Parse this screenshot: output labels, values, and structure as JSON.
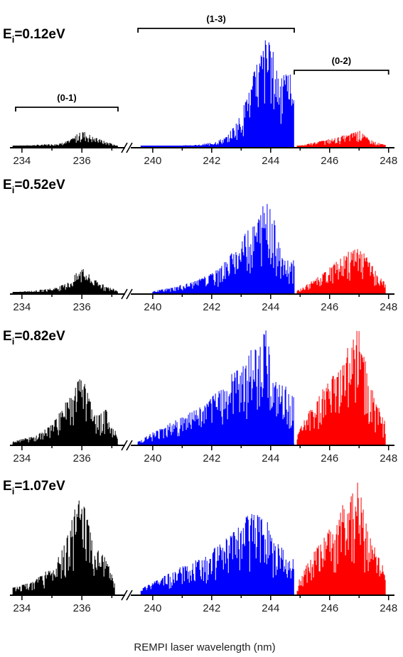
{
  "figure": {
    "xlabel": "REMPI laser wavelength (nm)"
  },
  "chart_data": {
    "type": "line",
    "xlabel": "REMPI laser wavelength (nm)",
    "x_axis": {
      "segments": [
        [
          233.6,
          237.3
        ],
        [
          239.4,
          248.2
        ]
      ],
      "break_between": [
        237.3,
        239.4
      ],
      "tick_labels": [
        "234",
        "236",
        "240",
        "242",
        "244",
        "246",
        "248"
      ],
      "ticks": [
        234,
        236,
        240,
        242,
        244,
        246,
        248
      ]
    },
    "band_groups": [
      {
        "label": "(0-1)",
        "x_range": [
          233.6,
          237.3
        ],
        "color": "#000000"
      },
      {
        "label": "(1-3)",
        "x_range": [
          239.5,
          244.8
        ],
        "color": "#0000ff"
      },
      {
        "label": "(0-2)",
        "x_range": [
          244.8,
          248.0
        ],
        "color": "#ff0000"
      }
    ],
    "colors": {
      "(0-1)": "#000000",
      "(1-3)": "#0000ff",
      "(0-2)": "#ff0000"
    },
    "panels": [
      {
        "energy_label": {
          "main": "E",
          "sub": "i",
          "value": "=0.12eV"
        },
        "series": [
          {
            "band": "(0-1)",
            "x_start": 233.7,
            "x_end": 237.2,
            "peaks": [
              [
                233.7,
                0.01
              ],
              [
                234.5,
                0.02
              ],
              [
                235.2,
                0.03
              ],
              [
                235.6,
                0.06
              ],
              [
                235.9,
                0.13
              ],
              [
                236.1,
                0.14
              ],
              [
                236.4,
                0.09
              ],
              [
                236.8,
                0.05
              ],
              [
                237.2,
                0.01
              ]
            ]
          },
          {
            "band": "(1-3)",
            "x_start": 239.6,
            "x_end": 244.8,
            "peaks": [
              [
                239.6,
                0.01
              ],
              [
                240.5,
                0.01
              ],
              [
                241.5,
                0.02
              ],
              [
                242.0,
                0.04
              ],
              [
                242.5,
                0.09
              ],
              [
                243.0,
                0.3
              ],
              [
                243.3,
                0.55
              ],
              [
                243.6,
                0.82
              ],
              [
                243.85,
                1.0
              ],
              [
                244.1,
                0.85
              ],
              [
                244.4,
                0.62
              ],
              [
                244.7,
                0.72
              ],
              [
                244.8,
                0.4
              ]
            ]
          },
          {
            "band": "(0-2)",
            "x_start": 244.9,
            "x_end": 247.9,
            "peaks": [
              [
                244.9,
                0.01
              ],
              [
                245.3,
                0.03
              ],
              [
                245.8,
                0.06
              ],
              [
                246.3,
                0.09
              ],
              [
                246.7,
                0.12
              ],
              [
                247.0,
                0.15
              ],
              [
                247.3,
                0.08
              ],
              [
                247.6,
                0.04
              ],
              [
                247.9,
                0.02
              ]
            ]
          }
        ]
      },
      {
        "energy_label": {
          "main": "E",
          "sub": "i",
          "value": "=0.52eV"
        },
        "series": [
          {
            "band": "(0-1)",
            "x_start": 233.7,
            "x_end": 237.2,
            "peaks": [
              [
                233.7,
                0.01
              ],
              [
                234.5,
                0.03
              ],
              [
                235.2,
                0.06
              ],
              [
                235.6,
                0.12
              ],
              [
                235.9,
                0.23
              ],
              [
                236.1,
                0.24
              ],
              [
                236.4,
                0.14
              ],
              [
                236.8,
                0.07
              ],
              [
                237.2,
                0.03
              ]
            ]
          },
          {
            "band": "(1-3)",
            "x_start": 240.0,
            "x_end": 244.8,
            "peaks": [
              [
                240.0,
                0.02
              ],
              [
                240.8,
                0.07
              ],
              [
                241.5,
                0.13
              ],
              [
                242.0,
                0.2
              ],
              [
                242.5,
                0.32
              ],
              [
                242.9,
                0.48
              ],
              [
                243.3,
                0.66
              ],
              [
                243.6,
                0.8
              ],
              [
                243.85,
                0.95
              ],
              [
                244.1,
                0.74
              ],
              [
                244.4,
                0.36
              ],
              [
                244.8,
                0.32
              ]
            ]
          },
          {
            "band": "(0-2)",
            "x_start": 244.9,
            "x_end": 247.9,
            "peaks": [
              [
                244.9,
                0.03
              ],
              [
                245.3,
                0.1
              ],
              [
                245.8,
                0.2
              ],
              [
                246.2,
                0.3
              ],
              [
                246.6,
                0.42
              ],
              [
                246.9,
                0.45
              ],
              [
                247.2,
                0.38
              ],
              [
                247.6,
                0.2
              ],
              [
                247.9,
                0.1
              ]
            ]
          }
        ]
      },
      {
        "energy_label": {
          "main": "E",
          "sub": "i",
          "value": "=0.82eV"
        },
        "series": [
          {
            "band": "(0-1)",
            "x_start": 233.7,
            "x_end": 237.2,
            "peaks": [
              [
                233.7,
                0.03
              ],
              [
                234.5,
                0.08
              ],
              [
                235.0,
                0.18
              ],
              [
                235.5,
                0.38
              ],
              [
                235.9,
                0.58
              ],
              [
                236.1,
                0.55
              ],
              [
                236.4,
                0.26
              ],
              [
                236.8,
                0.3
              ],
              [
                237.2,
                0.07
              ]
            ]
          },
          {
            "band": "(1-3)",
            "x_start": 239.5,
            "x_end": 244.8,
            "peaks": [
              [
                239.5,
                0.03
              ],
              [
                240.3,
                0.15
              ],
              [
                241.0,
                0.24
              ],
              [
                241.8,
                0.35
              ],
              [
                242.4,
                0.52
              ],
              [
                242.9,
                0.68
              ],
              [
                243.3,
                0.8
              ],
              [
                243.6,
                0.9
              ],
              [
                243.85,
                1.0
              ],
              [
                244.1,
                0.55
              ],
              [
                244.5,
                0.5
              ],
              [
                244.8,
                0.4
              ]
            ]
          },
          {
            "band": "(0-2)",
            "x_start": 244.9,
            "x_end": 247.9,
            "peaks": [
              [
                244.9,
                0.08
              ],
              [
                245.3,
                0.3
              ],
              [
                245.8,
                0.5
              ],
              [
                246.2,
                0.62
              ],
              [
                246.6,
                0.82
              ],
              [
                247.0,
                1.02
              ],
              [
                247.3,
                0.6
              ],
              [
                247.6,
                0.35
              ],
              [
                247.9,
                0.2
              ]
            ]
          }
        ]
      },
      {
        "energy_label": {
          "main": "E",
          "sub": "i",
          "value": "=1.07eV"
        },
        "series": [
          {
            "band": "(0-1)",
            "x_start": 233.7,
            "x_end": 237.1,
            "peaks": [
              [
                233.7,
                0.06
              ],
              [
                234.4,
                0.12
              ],
              [
                235.0,
                0.25
              ],
              [
                235.5,
                0.5
              ],
              [
                235.9,
                0.88
              ],
              [
                236.1,
                0.78
              ],
              [
                236.4,
                0.42
              ],
              [
                236.8,
                0.34
              ],
              [
                237.1,
                0.1
              ]
            ]
          },
          {
            "band": "(1-3)",
            "x_start": 239.6,
            "x_end": 244.8,
            "peaks": [
              [
                239.6,
                0.05
              ],
              [
                240.3,
                0.15
              ],
              [
                241.0,
                0.25
              ],
              [
                241.8,
                0.34
              ],
              [
                242.4,
                0.48
              ],
              [
                242.9,
                0.62
              ],
              [
                243.3,
                0.74
              ],
              [
                243.6,
                0.72
              ],
              [
                243.85,
                0.68
              ],
              [
                244.1,
                0.48
              ],
              [
                244.5,
                0.4
              ],
              [
                244.8,
                0.32
              ]
            ]
          },
          {
            "band": "(0-2)",
            "x_start": 244.9,
            "x_end": 247.9,
            "peaks": [
              [
                244.9,
                0.1
              ],
              [
                245.3,
                0.3
              ],
              [
                245.8,
                0.52
              ],
              [
                246.2,
                0.66
              ],
              [
                246.6,
                0.88
              ],
              [
                247.0,
                1.05
              ],
              [
                247.3,
                0.55
              ],
              [
                247.6,
                0.38
              ],
              [
                247.9,
                0.2
              ]
            ]
          }
        ]
      }
    ]
  }
}
